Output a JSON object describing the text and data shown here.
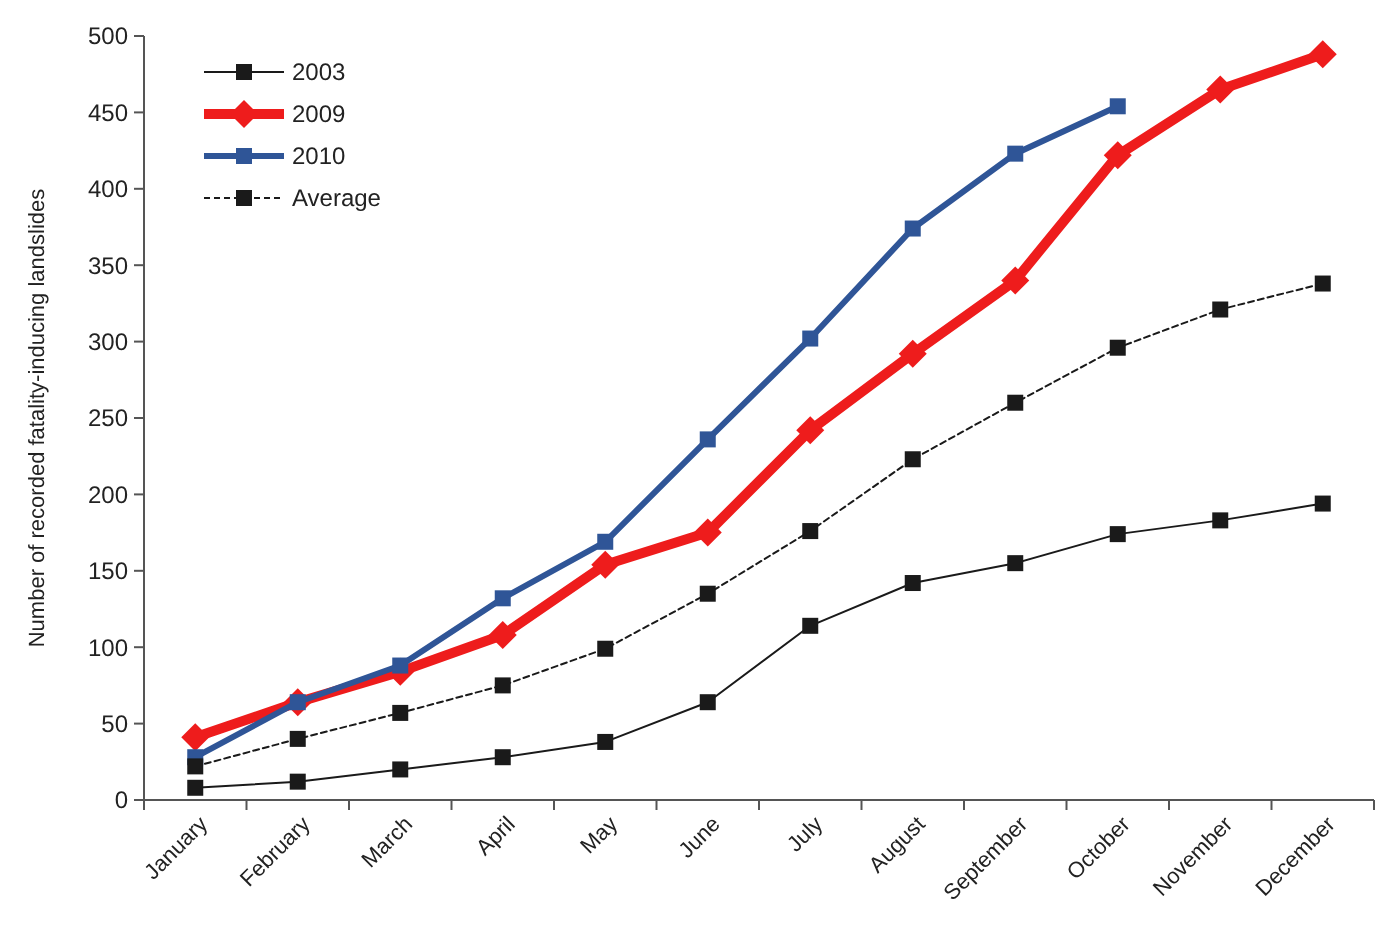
{
  "chart_data": {
    "type": "line",
    "ylabel": "Number of recorded fatality-inducing landslides",
    "categories": [
      "January",
      "February",
      "March",
      "April",
      "May",
      "June",
      "July",
      "August",
      "September",
      "October",
      "November",
      "December"
    ],
    "series": [
      {
        "name": "2003",
        "color": "#1a1a1a",
        "marker": "square",
        "line_style": "solid",
        "values": [
          8,
          12,
          20,
          28,
          38,
          64,
          114,
          142,
          155,
          174,
          183,
          194
        ]
      },
      {
        "name": "2009",
        "color": "#ee1c1c",
        "marker": "diamond",
        "line_style": "solid",
        "values": [
          41,
          64,
          84,
          108,
          154,
          175,
          242,
          292,
          340,
          422,
          465,
          488
        ]
      },
      {
        "name": "2010",
        "color": "#2f5597",
        "marker": "square",
        "line_style": "solid",
        "values": [
          28,
          64,
          88,
          132,
          169,
          236,
          302,
          374,
          423,
          454,
          null,
          null
        ]
      },
      {
        "name": "Average",
        "color": "#1a1a1a",
        "marker": "square",
        "line_style": "dashed",
        "values": [
          22,
          40,
          57,
          75,
          99,
          135,
          176,
          223,
          260,
          296,
          321,
          338
        ]
      }
    ],
    "ylim": [
      0,
      500
    ],
    "yticks": [
      0,
      50,
      100,
      150,
      200,
      250,
      300,
      350,
      400,
      450,
      500
    ],
    "grid": false,
    "legend": "top left"
  }
}
